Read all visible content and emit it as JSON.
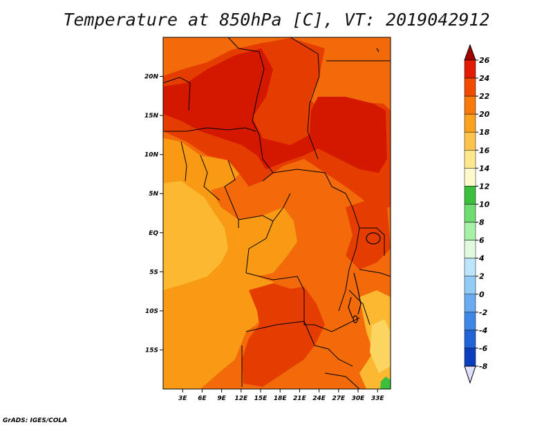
{
  "title": "Temperature at 850hPa [C], VT: 2019042912",
  "credit": "GrADS: IGES/COLA",
  "map": {
    "lon_range": [
      0,
      35
    ],
    "lat_range": [
      -20,
      25
    ],
    "x_ticks": [
      {
        "lon": 3,
        "label": "3E"
      },
      {
        "lon": 6,
        "label": "6E"
      },
      {
        "lon": 9,
        "label": "9E"
      },
      {
        "lon": 12,
        "label": "12E"
      },
      {
        "lon": 15,
        "label": "15E"
      },
      {
        "lon": 18,
        "label": "18E"
      },
      {
        "lon": 21,
        "label": "21E"
      },
      {
        "lon": 24,
        "label": "24E"
      },
      {
        "lon": 27,
        "label": "27E"
      },
      {
        "lon": 30,
        "label": "30E"
      },
      {
        "lon": 33,
        "label": "33E"
      }
    ],
    "y_ticks": [
      {
        "lat": 20,
        "label": "20N"
      },
      {
        "lat": 15,
        "label": "15N"
      },
      {
        "lat": 10,
        "label": "10N"
      },
      {
        "lat": 5,
        "label": "5N"
      },
      {
        "lat": 0,
        "label": "EQ"
      },
      {
        "lat": -5,
        "label": "5S"
      },
      {
        "lat": -10,
        "label": "10S"
      },
      {
        "lat": -15,
        "label": "15S"
      }
    ]
  },
  "colorbar": {
    "levels": [
      {
        "label": "26",
        "color": "#a50000"
      },
      {
        "label": "24",
        "color": "#e11c00"
      },
      {
        "label": "22",
        "color": "#f14b00"
      },
      {
        "label": "20",
        "color": "#f77a0a"
      },
      {
        "label": "18",
        "color": "#fba120"
      },
      {
        "label": "16",
        "color": "#fcc34c"
      },
      {
        "label": "14",
        "color": "#fde88e"
      },
      {
        "label": "12",
        "color": "#fffacb"
      },
      {
        "label": "10",
        "color": "#3cbf3c"
      },
      {
        "label": "8",
        "color": "#6edc6e"
      },
      {
        "label": "6",
        "color": "#a7f0a7"
      },
      {
        "label": "4",
        "color": "#e0fae0"
      },
      {
        "label": "2",
        "color": "#bde5fb"
      },
      {
        "label": "0",
        "color": "#93cbf7"
      },
      {
        "label": "-2",
        "color": "#6aaaf1"
      },
      {
        "label": "-4",
        "color": "#3f87e6"
      },
      {
        "label": "-6",
        "color": "#2064d6"
      },
      {
        "label": "-8",
        "color": "#0b3ebf"
      }
    ],
    "top_color": "#a50000",
    "bottom_color": "#e0e0ff",
    "deep_color": "#0a148c"
  },
  "colors": {
    "c26": "#d41800",
    "c24": "#e53c00",
    "c22": "#f26a0a",
    "c20": "#f99a14",
    "c18": "#fbb830",
    "c16": "#fcd460",
    "green": "#3cbf3c"
  }
}
